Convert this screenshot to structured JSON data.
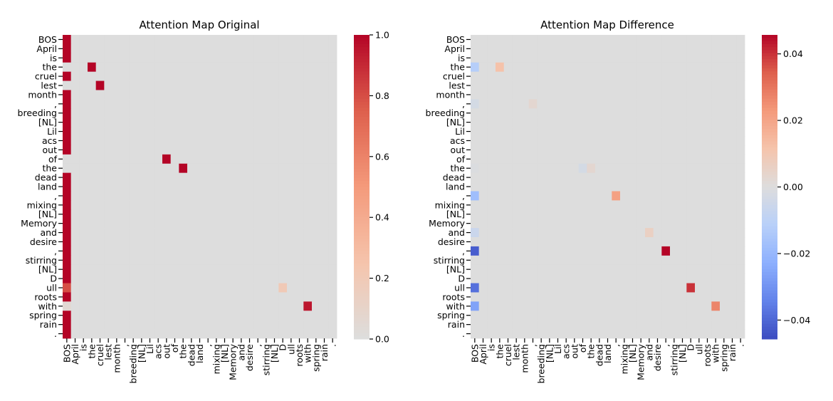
{
  "chart_data": [
    {
      "type": "heatmap",
      "title": "Attention Map Original",
      "tokens": [
        "BOS",
        "April",
        "is",
        "the",
        "cruel",
        "lest",
        "month",
        ",",
        "breeding",
        "[NL]",
        "Lil",
        "acs",
        "out",
        "of",
        "the",
        "dead",
        "land",
        ",",
        "mixing",
        "[NL]",
        "Memory",
        "and",
        "desire",
        ",",
        "stirring",
        "[NL]",
        "D",
        "ull",
        "roots",
        "with",
        "spring",
        "rain",
        "."
      ],
      "default_value": 0,
      "cells": [
        [
          0,
          0,
          1
        ],
        [
          1,
          0,
          1
        ],
        [
          2,
          0,
          1
        ],
        [
          3,
          3,
          1
        ],
        [
          4,
          0,
          1
        ],
        [
          5,
          4,
          1
        ],
        [
          6,
          0,
          1
        ],
        [
          7,
          0,
          1
        ],
        [
          8,
          0,
          1
        ],
        [
          9,
          0,
          1
        ],
        [
          10,
          0,
          1
        ],
        [
          11,
          0,
          1
        ],
        [
          12,
          0,
          1
        ],
        [
          13,
          12,
          1
        ],
        [
          14,
          14,
          1
        ],
        [
          15,
          0,
          1
        ],
        [
          16,
          0,
          1
        ],
        [
          17,
          0,
          1
        ],
        [
          18,
          0,
          1
        ],
        [
          19,
          0,
          1
        ],
        [
          20,
          0,
          1
        ],
        [
          21,
          0,
          1
        ],
        [
          22,
          0,
          1
        ],
        [
          23,
          0,
          1
        ],
        [
          24,
          0,
          1
        ],
        [
          25,
          0,
          1
        ],
        [
          26,
          0,
          1
        ],
        [
          27,
          0,
          0.8
        ],
        [
          27,
          26,
          0.2
        ],
        [
          28,
          0,
          1
        ],
        [
          29,
          0,
          0.05
        ],
        [
          29,
          29,
          0.95
        ],
        [
          30,
          0,
          1
        ],
        [
          31,
          0,
          1
        ],
        [
          32,
          0,
          1
        ]
      ],
      "vmin": 0,
      "vmax": 1,
      "center": 0,
      "colormap": "coolwarm",
      "colorbar_ticks": [
        0,
        0.2,
        0.4,
        0.6,
        0.8,
        1.0
      ],
      "colorbar_tick_labels": [
        "0.0",
        "0.2",
        "0.4",
        "0.6",
        "0.8",
        "1.0"
      ]
    },
    {
      "type": "heatmap",
      "title": "Attention Map Difference",
      "tokens": [
        "BOS",
        "April",
        "is",
        "the",
        "cruel",
        "lest",
        "month",
        ",",
        "breeding",
        "[NL]",
        "Lil",
        "acs",
        "out",
        "of",
        "the",
        "dead",
        "land",
        ",",
        "mixing",
        "[NL]",
        "Memory",
        "and",
        "desire",
        ",",
        "stirring",
        "[NL]",
        "D",
        "ull",
        "roots",
        "with",
        "spring",
        "rain",
        "."
      ],
      "default_value": 0,
      "cells": [
        [
          3,
          0,
          -0.012
        ],
        [
          3,
          3,
          0.012
        ],
        [
          7,
          0,
          -0.003
        ],
        [
          7,
          7,
          0.003
        ],
        [
          14,
          0,
          -0.001
        ],
        [
          14,
          13,
          -0.003
        ],
        [
          14,
          14,
          0.003
        ],
        [
          17,
          0,
          -0.018
        ],
        [
          17,
          17,
          0.021
        ],
        [
          21,
          0,
          -0.006
        ],
        [
          21,
          21,
          0.006
        ],
        [
          23,
          0,
          -0.042
        ],
        [
          23,
          23,
          0.046
        ],
        [
          27,
          0,
          -0.038
        ],
        [
          27,
          26,
          0.04
        ],
        [
          29,
          0,
          -0.026
        ],
        [
          29,
          29,
          0.027
        ]
      ],
      "vmin": -0.0457,
      "vmax": 0.0457,
      "center": 0,
      "colormap": "coolwarm",
      "colorbar_ticks": [
        -0.04,
        -0.02,
        0,
        0.02,
        0.04
      ],
      "colorbar_tick_labels": [
        "−0.04",
        "−0.02",
        "0.00",
        "0.02",
        "0.04"
      ]
    }
  ]
}
